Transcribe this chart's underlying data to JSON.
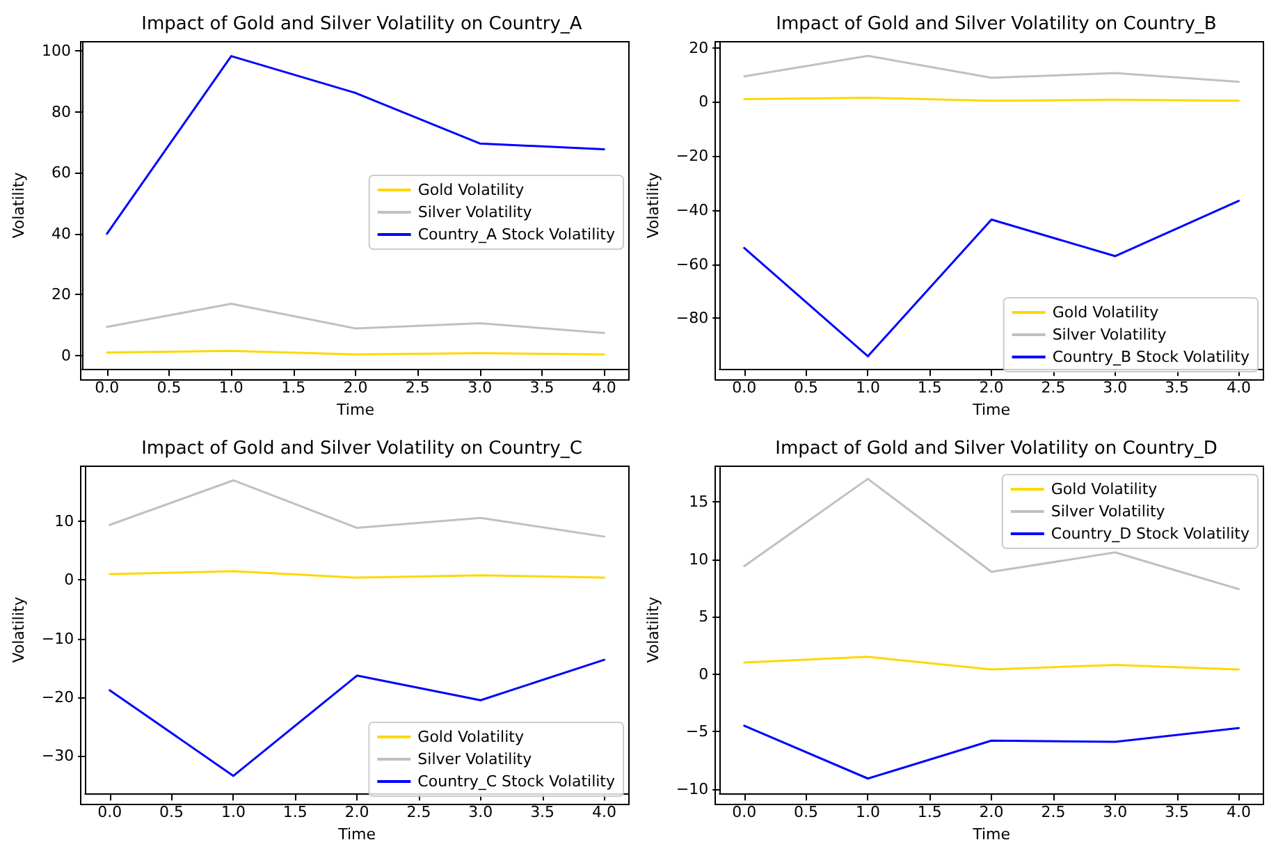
{
  "chart_data": [
    {
      "type": "line",
      "title": "Impact of Gold and Silver Volatility on Country_A",
      "xlabel": "Time",
      "ylabel": "Volatility",
      "x": [
        0,
        1,
        2,
        3,
        4
      ],
      "series": [
        {
          "name": "Gold Volatility",
          "color": "#ffd700",
          "values": [
            1.0,
            1.5,
            0.4,
            0.8,
            0.4
          ]
        },
        {
          "name": "Silver Volatility",
          "color": "#c0c0c0",
          "values": [
            9.4,
            17.0,
            8.9,
            10.6,
            7.4
          ]
        },
        {
          "name": "Country_A Stock Volatility",
          "color": "#0000ff",
          "values": [
            40,
            98.3,
            86.2,
            69.6,
            67.7
          ]
        }
      ],
      "xlim": [
        -0.2,
        4.2
      ],
      "xticks": [
        {
          "value": 0,
          "label": "0.0"
        },
        {
          "value": 0.5,
          "label": "0.5"
        },
        {
          "value": 1,
          "label": "1.0"
        },
        {
          "value": 1.5,
          "label": "1.5"
        },
        {
          "value": 2,
          "label": "2.0"
        },
        {
          "value": 2.5,
          "label": "2.5"
        },
        {
          "value": 3,
          "label": "3.0"
        },
        {
          "value": 3.5,
          "label": "3.5"
        },
        {
          "value": 4,
          "label": "4.0"
        }
      ],
      "ylim": [
        -4.4,
        103
      ],
      "yticks": [
        0,
        20,
        40,
        60,
        80,
        100
      ],
      "legend": "right",
      "marker": "none",
      "grid": false
    },
    {
      "type": "line",
      "title": "Impact of Gold and Silver Volatility on Country_B",
      "xlabel": "Time",
      "ylabel": "Volatility",
      "x": [
        0,
        1,
        2,
        3,
        4
      ],
      "series": [
        {
          "name": "Gold Volatility",
          "color": "#ffd700",
          "values": [
            1.0,
            1.5,
            0.4,
            0.8,
            0.4
          ]
        },
        {
          "name": "Silver Volatility",
          "color": "#c0c0c0",
          "values": [
            9.4,
            17.0,
            8.9,
            10.6,
            7.4
          ]
        },
        {
          "name": "Country_B Stock Volatility",
          "color": "#0000ff",
          "values": [
            -54,
            -94,
            -43.5,
            -57,
            -36.6
          ]
        }
      ],
      "xlim": [
        -0.2,
        4.2
      ],
      "xticks": [
        {
          "value": 0,
          "label": "0.0"
        },
        {
          "value": 0.5,
          "label": "0.5"
        },
        {
          "value": 1,
          "label": "1.0"
        },
        {
          "value": 1.5,
          "label": "1.5"
        },
        {
          "value": 2,
          "label": "2.0"
        },
        {
          "value": 2.5,
          "label": "2.5"
        },
        {
          "value": 3,
          "label": "3.0"
        },
        {
          "value": 3.5,
          "label": "3.5"
        },
        {
          "value": 4,
          "label": "4.0"
        }
      ],
      "ylim": [
        -98.7,
        22.2
      ],
      "yticks": [
        -80,
        -60,
        -40,
        -20,
        0,
        20
      ],
      "legend": "bottom right",
      "marker": "none",
      "grid": false
    },
    {
      "type": "line",
      "title": "Impact of Gold and Silver Volatility on Country_C",
      "xlabel": "Time",
      "ylabel": "Volatility",
      "x": [
        0,
        1,
        2,
        3,
        4
      ],
      "series": [
        {
          "name": "Gold Volatility",
          "color": "#ffd700",
          "values": [
            1.0,
            1.5,
            0.4,
            0.8,
            0.4
          ]
        },
        {
          "name": "Silver Volatility",
          "color": "#c0c0c0",
          "values": [
            9.4,
            17.0,
            8.9,
            10.6,
            7.4
          ]
        },
        {
          "name": "Country_C Stock Volatility",
          "color": "#0000ff",
          "values": [
            -18.8,
            -33.4,
            -16.3,
            -20.5,
            -13.6
          ]
        }
      ],
      "xlim": [
        -0.2,
        4.2
      ],
      "xticks": [
        {
          "value": 0,
          "label": "0.0"
        },
        {
          "value": 0.5,
          "label": "0.5"
        },
        {
          "value": 1,
          "label": "1.0"
        },
        {
          "value": 1.5,
          "label": "1.5"
        },
        {
          "value": 2,
          "label": "2.0"
        },
        {
          "value": 2.5,
          "label": "2.5"
        },
        {
          "value": 3,
          "label": "3.0"
        },
        {
          "value": 3.5,
          "label": "3.5"
        },
        {
          "value": 4,
          "label": "4.0"
        }
      ],
      "ylim": [
        -36.4,
        19.4
      ],
      "yticks": [
        -30,
        -20,
        -10,
        0,
        10
      ],
      "legend": "bottom right",
      "marker": "none",
      "grid": false
    },
    {
      "type": "line",
      "title": "Impact of Gold and Silver Volatility on Country_D",
      "xlabel": "Time",
      "ylabel": "Volatility",
      "x": [
        0,
        1,
        2,
        3,
        4
      ],
      "series": [
        {
          "name": "Gold Volatility",
          "color": "#ffd700",
          "values": [
            1.0,
            1.5,
            0.4,
            0.8,
            0.4
          ]
        },
        {
          "name": "Silver Volatility",
          "color": "#c0c0c0",
          "values": [
            9.4,
            17.0,
            8.9,
            10.6,
            7.4
          ]
        },
        {
          "name": "Country_D Stock Volatility",
          "color": "#0000ff",
          "values": [
            -4.5,
            -9.1,
            -5.8,
            -5.9,
            -4.7
          ]
        }
      ],
      "xlim": [
        -0.2,
        4.2
      ],
      "xticks": [
        {
          "value": 0,
          "label": "0.0"
        },
        {
          "value": 0.5,
          "label": "0.5"
        },
        {
          "value": 1,
          "label": "1.0"
        },
        {
          "value": 1.5,
          "label": "1.5"
        },
        {
          "value": 2,
          "label": "2.0"
        },
        {
          "value": 2.5,
          "label": "2.5"
        },
        {
          "value": 3,
          "label": "3.0"
        },
        {
          "value": 3.5,
          "label": "3.5"
        },
        {
          "value": 4,
          "label": "4.0"
        }
      ],
      "ylim": [
        -10.4,
        18.1
      ],
      "yticks": [
        -10,
        -5,
        0,
        5,
        10,
        15
      ],
      "legend": "top right",
      "marker": "none",
      "grid": false
    }
  ]
}
